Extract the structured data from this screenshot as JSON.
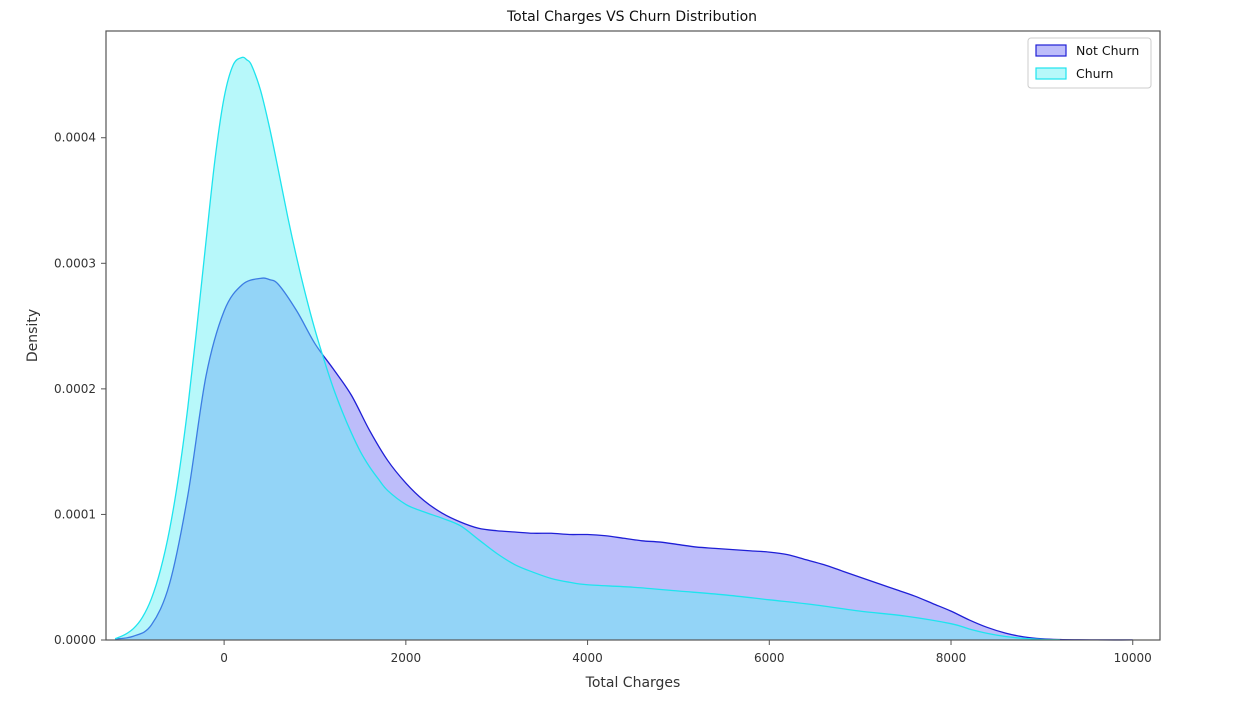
{
  "chart_data": {
    "type": "area",
    "title": "Total Charges VS Churn Distribution",
    "xlabel": "Total Charges",
    "ylabel": "Density",
    "xlim": [
      -1300,
      10300
    ],
    "ylim": [
      0,
      0.000485
    ],
    "xticks": [
      0,
      2000,
      4000,
      6000,
      8000,
      10000
    ],
    "xtick_labels": [
      "0",
      "2000",
      "4000",
      "6000",
      "8000",
      "10000"
    ],
    "yticks": [
      0,
      0.0001,
      0.0002,
      0.0003,
      0.0004
    ],
    "ytick_labels": [
      "0.0000",
      "0.0001",
      "0.0002",
      "0.0003",
      "0.0004"
    ],
    "grid": false,
    "legend_position": "top-right",
    "series": [
      {
        "name": "Not Churn",
        "fill_color": "#7b7bf5",
        "line_color": "#1f1fd6",
        "fill_opacity": 0.5,
        "x": [
          -1200,
          -1000,
          -800,
          -600,
          -400,
          -200,
          0,
          200,
          400,
          500,
          600,
          800,
          1000,
          1200,
          1400,
          1600,
          1800,
          2000,
          2200,
          2400,
          2600,
          2800,
          3000,
          3200,
          3400,
          3600,
          3800,
          4000,
          4200,
          4400,
          4600,
          4800,
          5000,
          5200,
          5400,
          5600,
          5800,
          6000,
          6200,
          6400,
          6600,
          6800,
          7000,
          7200,
          7400,
          7600,
          7800,
          8000,
          8200,
          8400,
          8600,
          8800,
          9000,
          9200,
          9400,
          9600,
          9800,
          10000
        ],
        "y": [
          8e-07,
          3e-06,
          1.2e-05,
          4.5e-05,
          0.000115,
          0.00021,
          0.000262,
          0.000283,
          0.000288,
          0.000287,
          0.000283,
          0.000262,
          0.000236,
          0.000216,
          0.000195,
          0.000167,
          0.000143,
          0.000125,
          0.000111,
          0.000101,
          9.4e-05,
          8.9e-05,
          8.7e-05,
          8.6e-05,
          8.5e-05,
          8.5e-05,
          8.4e-05,
          8.4e-05,
          8.3e-05,
          8.1e-05,
          7.9e-05,
          7.8e-05,
          7.6e-05,
          7.4e-05,
          7.3e-05,
          7.2e-05,
          7.1e-05,
          7e-05,
          6.8e-05,
          6.4e-05,
          6e-05,
          5.5e-05,
          5e-05,
          4.5e-05,
          4e-05,
          3.5e-05,
          2.9e-05,
          2.3e-05,
          1.6e-05,
          1e-05,
          5.5e-06,
          2.5e-06,
          1e-06,
          4e-07,
          2e-07,
          1e-07,
          5e-08,
          1e-07
        ]
      },
      {
        "name": "Churn",
        "fill_color": "#5ff0f5",
        "line_color": "#1ee4ee",
        "fill_opacity": 0.45,
        "x": [
          -1200,
          -1100,
          -1000,
          -900,
          -800,
          -700,
          -600,
          -500,
          -400,
          -300,
          -200,
          -100,
          0,
          100,
          200,
          250,
          300,
          400,
          500,
          600,
          700,
          800,
          900,
          1000,
          1100,
          1200,
          1300,
          1400,
          1500,
          1600,
          1700,
          1800,
          2000,
          2200,
          2400,
          2600,
          2800,
          3000,
          3200,
          3400,
          3600,
          3800,
          4000,
          4500,
          5000,
          5500,
          6000,
          6500,
          7000,
          7500,
          8000,
          8200,
          8400,
          8600,
          8800,
          9000,
          9200
        ],
        "y": [
          1e-06,
          4e-06,
          9e-06,
          1.8e-05,
          3.3e-05,
          5.6e-05,
          8.8e-05,
          0.000131,
          0.000185,
          0.000249,
          0.000317,
          0.000383,
          0.000432,
          0.000458,
          0.000464,
          0.000462,
          0.000458,
          0.000438,
          0.000408,
          0.000373,
          0.000337,
          0.000304,
          0.000274,
          0.000247,
          0.000223,
          0.000201,
          0.000182,
          0.000165,
          0.00015,
          0.000138,
          0.000128,
          0.000119,
          0.000108,
          0.000102,
          9.7e-05,
          9.1e-05,
          8e-05,
          6.9e-05,
          6e-05,
          5.4e-05,
          4.9e-05,
          4.6e-05,
          4.4e-05,
          4.2e-05,
          3.9e-05,
          3.6e-05,
          3.2e-05,
          2.8e-05,
          2.3e-05,
          1.9e-05,
          1.3e-05,
          8.8e-06,
          5.3e-06,
          2.8e-06,
          1.3e-06,
          5e-07,
          2e-07
        ]
      }
    ]
  }
}
